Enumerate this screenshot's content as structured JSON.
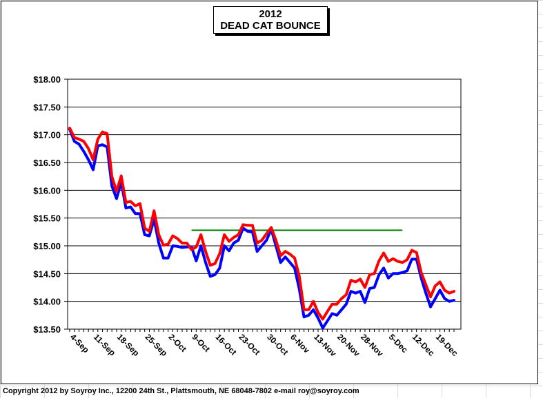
{
  "chart_data": {
    "type": "line",
    "title": "2012",
    "subtitle": "DEAD CAT BOUNCE",
    "xlabel": "",
    "ylabel": "",
    "ylim": [
      13.5,
      18.0
    ],
    "yticks": [
      13.5,
      14.0,
      14.5,
      15.0,
      15.5,
      16.0,
      16.5,
      17.0,
      17.5,
      18.0
    ],
    "ytick_labels": [
      "$13.50",
      "$14.00",
      "$14.50",
      "$15.00",
      "$15.50",
      "$16.00",
      "$16.50",
      "$17.00",
      "$17.50",
      "$18.00"
    ],
    "xticks": [
      "4-Sep",
      "11-Sep",
      "18-Sep",
      "25-Sep",
      "2-Oct",
      "9-Oct",
      "16-Oct",
      "23-Oct",
      "30-Oct",
      "6-Nov",
      "13-Nov",
      "20-Nov",
      "28-Nov",
      "5-Dec",
      "12-Dec",
      "19-Dec"
    ],
    "grid": true,
    "series": [
      {
        "color": "#0000ff",
        "values": [
          17.1,
          16.88,
          16.83,
          16.7,
          16.55,
          16.37,
          16.8,
          16.82,
          16.78,
          16.08,
          15.85,
          16.15,
          15.68,
          15.7,
          15.58,
          15.58,
          15.2,
          15.18,
          15.48,
          15.05,
          14.78,
          14.78,
          15.0,
          14.99,
          14.97,
          14.98,
          14.98,
          14.73,
          15.0,
          14.7,
          14.45,
          14.48,
          14.6,
          15.0,
          14.91,
          15.05,
          15.1,
          15.32,
          15.26,
          15.25,
          14.9,
          15.0,
          15.1,
          15.3,
          15.0,
          14.7,
          14.8,
          14.7,
          14.6,
          14.22,
          13.72,
          13.75,
          13.85,
          13.7,
          13.52,
          13.65,
          13.78,
          13.75,
          13.85,
          13.95,
          14.18,
          14.15,
          14.18,
          13.98,
          14.23,
          14.25,
          14.48,
          14.6,
          14.42,
          14.5,
          14.5,
          14.52,
          14.55,
          14.76,
          14.76,
          14.42,
          14.15,
          13.9,
          14.05,
          14.2,
          14.05,
          14.0,
          14.02
        ]
      },
      {
        "color": "#ff0000",
        "values": [
          17.12,
          16.95,
          16.92,
          16.88,
          16.75,
          16.55,
          16.92,
          17.05,
          17.02,
          16.25,
          15.98,
          16.26,
          15.78,
          15.8,
          15.72,
          15.76,
          15.32,
          15.26,
          15.63,
          15.2,
          15.01,
          15.03,
          15.18,
          15.13,
          15.05,
          15.05,
          14.93,
          14.98,
          15.2,
          14.9,
          14.65,
          14.68,
          14.86,
          15.2,
          15.08,
          15.15,
          15.2,
          15.38,
          15.37,
          15.37,
          15.05,
          15.1,
          15.22,
          15.33,
          15.1,
          14.82,
          14.9,
          14.85,
          14.78,
          14.45,
          13.85,
          13.85,
          14.0,
          13.8,
          13.68,
          13.82,
          13.95,
          13.95,
          14.05,
          14.12,
          14.38,
          14.35,
          14.4,
          14.25,
          14.48,
          14.5,
          14.73,
          14.87,
          14.72,
          14.77,
          14.72,
          14.7,
          14.75,
          14.92,
          14.88,
          14.52,
          14.3,
          14.08,
          14.28,
          14.35,
          14.2,
          14.15,
          14.18
        ]
      }
    ],
    "reference_line": {
      "value": 15.28,
      "x_start_index": 26,
      "x_end_index": 71,
      "color": "#008000"
    }
  },
  "footer": "Copyright 2012 by Soyroy Inc., 12200 24th St., Plattsmouth, NE 68048-7802 e-mail roy@soyroy.com"
}
